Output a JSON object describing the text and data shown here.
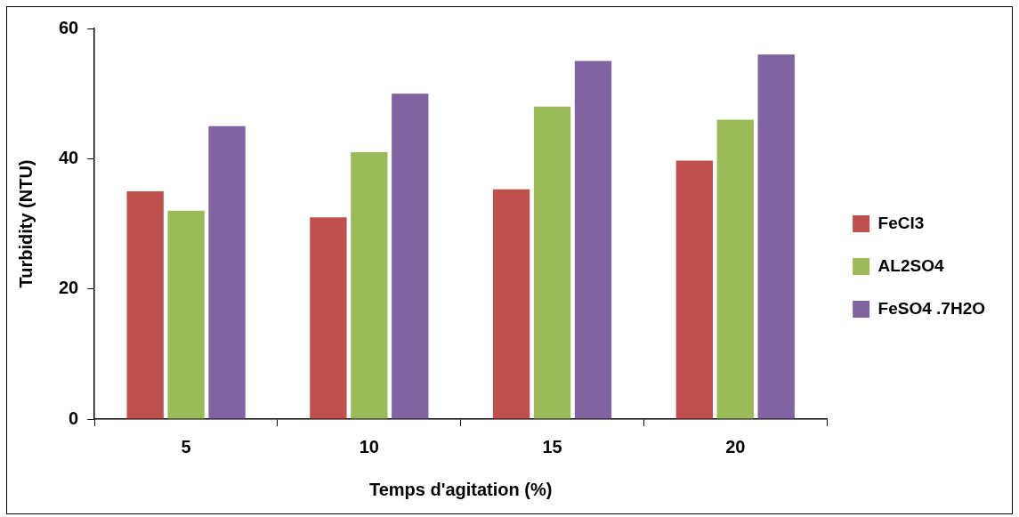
{
  "chart_data": {
    "type": "bar",
    "xlabel": "Temps d'agitation (%)",
    "ylabel": "Turbidity (NTU)",
    "categories": [
      "5",
      "10",
      "15",
      "20"
    ],
    "series": [
      {
        "name": "FeCl3",
        "color": "#c0504d",
        "values": [
          35,
          31,
          35.3,
          39.7
        ]
      },
      {
        "name": "AL2SO4",
        "color": "#9bbb59",
        "values": [
          32,
          41,
          48,
          46
        ]
      },
      {
        "name": "FeSO4 .7H2O",
        "color": "#8064a2",
        "values": [
          45,
          50,
          55,
          56
        ]
      }
    ],
    "ylim": [
      0,
      60
    ],
    "yticks": [
      0,
      20,
      40,
      60
    ],
    "legend": "right"
  }
}
